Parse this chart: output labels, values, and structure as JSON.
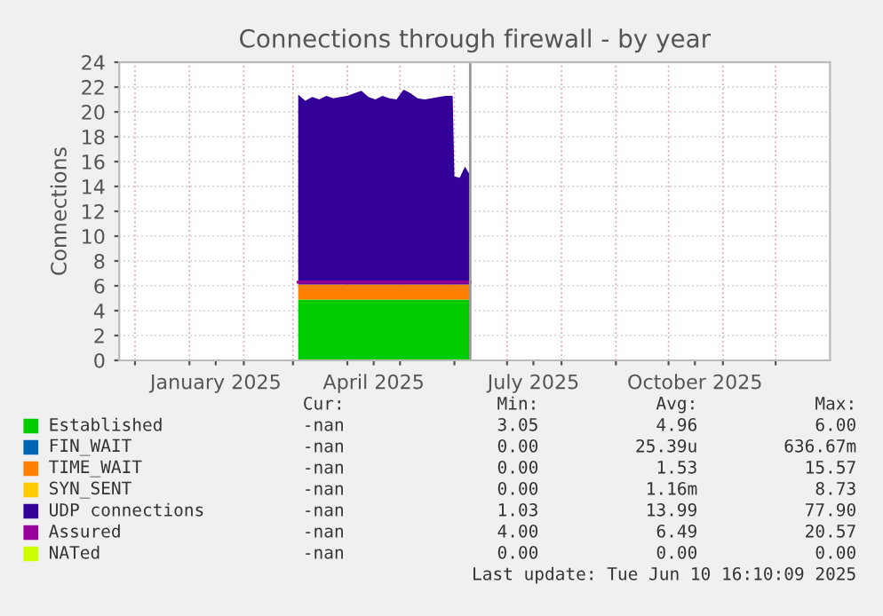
{
  "chart_data": {
    "type": "area",
    "title": "Connections through firewall - by year",
    "ylabel": "Connections",
    "stacked": true,
    "x": [
      "2025-03-04",
      "2025-03-08",
      "2025-03-12",
      "2025-03-16",
      "2025-03-20",
      "2025-03-24",
      "2025-03-28",
      "2025-04-01",
      "2025-04-05",
      "2025-04-09",
      "2025-04-13",
      "2025-04-17",
      "2025-04-21",
      "2025-04-25",
      "2025-04-29",
      "2025-05-03",
      "2025-05-07",
      "2025-05-11",
      "2025-05-15",
      "2025-05-19",
      "2025-05-23",
      "2025-05-27",
      "2025-05-31",
      "2025-06-01",
      "2025-06-04",
      "2025-06-07",
      "2025-06-10"
    ],
    "series": [
      {
        "name": "Established",
        "color": "#00cc00",
        "values": [
          4.9,
          4.9,
          4.9,
          4.9,
          4.9,
          4.9,
          4.9,
          4.9,
          4.9,
          4.9,
          4.9,
          4.9,
          4.9,
          4.9,
          4.9,
          4.9,
          4.9,
          4.9,
          4.9,
          4.9,
          4.9,
          4.9,
          4.9,
          4.9,
          4.9,
          4.9,
          4.9
        ]
      },
      {
        "name": "FIN_WAIT",
        "color": "#0066b3",
        "values": [
          null,
          null,
          null,
          null,
          null,
          null,
          null,
          null,
          null,
          null,
          null,
          null,
          null,
          null,
          null,
          null,
          null,
          null,
          null,
          null,
          null,
          null,
          null,
          null,
          null,
          null,
          null
        ]
      },
      {
        "name": "TIME_WAIT",
        "color": "#ff8000",
        "values": [
          1.2,
          1.2,
          1.2,
          1.2,
          1.2,
          1.2,
          1.2,
          1.2,
          1.2,
          1.2,
          1.2,
          1.2,
          1.2,
          1.2,
          1.2,
          1.2,
          1.2,
          1.2,
          1.2,
          1.2,
          1.2,
          1.2,
          1.2,
          1.2,
          1.2,
          1.2,
          1.2
        ]
      },
      {
        "name": "SYN_SENT",
        "color": "#ffcc00",
        "values": [
          null,
          null,
          null,
          null,
          null,
          null,
          null,
          null,
          null,
          null,
          null,
          null,
          null,
          null,
          null,
          null,
          null,
          null,
          null,
          null,
          null,
          null,
          null,
          null,
          null,
          null,
          null
        ]
      },
      {
        "name": "UDP connections",
        "color": "#330099",
        "values": [
          15.3,
          14.8,
          15.1,
          14.9,
          15.2,
          15.0,
          15.1,
          15.2,
          15.4,
          15.6,
          15.1,
          14.9,
          15.2,
          15.0,
          14.9,
          15.7,
          15.4,
          15.0,
          14.9,
          15.0,
          15.1,
          15.2,
          15.2,
          8.7,
          8.6,
          9.5,
          8.8
        ]
      },
      {
        "name": "Assured",
        "color": "#990099",
        "type": "line",
        "values": [
          6.3,
          6.3,
          6.3,
          6.3,
          6.3,
          6.3,
          6.3,
          6.3,
          6.3,
          6.3,
          6.3,
          6.3,
          6.3,
          6.3,
          6.3,
          6.3,
          6.3,
          6.3,
          6.3,
          6.3,
          6.3,
          6.3,
          6.3,
          6.3,
          6.3,
          6.3,
          6.3
        ]
      },
      {
        "name": "NATed",
        "color": "#ccff00",
        "type": "line",
        "values": [
          null,
          null,
          null,
          null,
          null,
          null,
          null,
          null,
          null,
          null,
          null,
          null,
          null,
          null,
          null,
          null,
          null,
          null,
          null,
          null,
          null,
          null,
          null,
          null,
          null,
          null,
          null
        ]
      }
    ],
    "xlim": [
      "2024-11-22",
      "2026-01-01"
    ],
    "xticks": [
      {
        "value": "2024-12-01",
        "label": null
      },
      {
        "value": "2025-01-01",
        "label": null
      },
      {
        "value": "2025-01-16",
        "label": "January 2025"
      },
      {
        "value": "2025-02-01",
        "label": null
      },
      {
        "value": "2025-03-01",
        "label": null
      },
      {
        "value": "2025-04-01",
        "label": null
      },
      {
        "value": "2025-04-16",
        "label": "April 2025"
      },
      {
        "value": "2025-05-01",
        "label": null
      },
      {
        "value": "2025-06-01",
        "label": null
      },
      {
        "value": "2025-07-01",
        "label": null
      },
      {
        "value": "2025-07-16",
        "label": "July 2025"
      },
      {
        "value": "2025-08-01",
        "label": null
      },
      {
        "value": "2025-09-01",
        "label": null
      },
      {
        "value": "2025-10-01",
        "label": null
      },
      {
        "value": "2025-10-16",
        "label": "October 2025"
      },
      {
        "value": "2025-11-01",
        "label": null
      },
      {
        "value": "2025-12-01",
        "label": null
      }
    ],
    "ylim": [
      0,
      24
    ],
    "yticks": [
      0,
      2,
      4,
      6,
      8,
      10,
      12,
      14,
      16,
      18,
      20,
      22,
      24
    ],
    "grid": true,
    "legend": "bottom",
    "ref_lines": [
      {
        "axis": "x",
        "value": "2025-06-10",
        "color": "#999999"
      }
    ],
    "annotations": [
      "Cur:",
      "Min:",
      "Avg:",
      "Max:",
      "-nan",
      "3.05",
      "4.96",
      "6.00",
      "-nan",
      "0.00",
      "25.39u",
      "636.67m",
      "-nan",
      "0.00",
      "1.53",
      "15.57",
      "-nan",
      "0.00",
      "1.16m",
      "8.73",
      "-nan",
      "1.03",
      "13.99",
      "77.90",
      "-nan",
      "4.00",
      "6.49",
      "20.57",
      "-nan",
      "0.00",
      "0.00",
      "0.00",
      "Last update: Tue Jun 10 16:10:09 2025"
    ]
  }
}
